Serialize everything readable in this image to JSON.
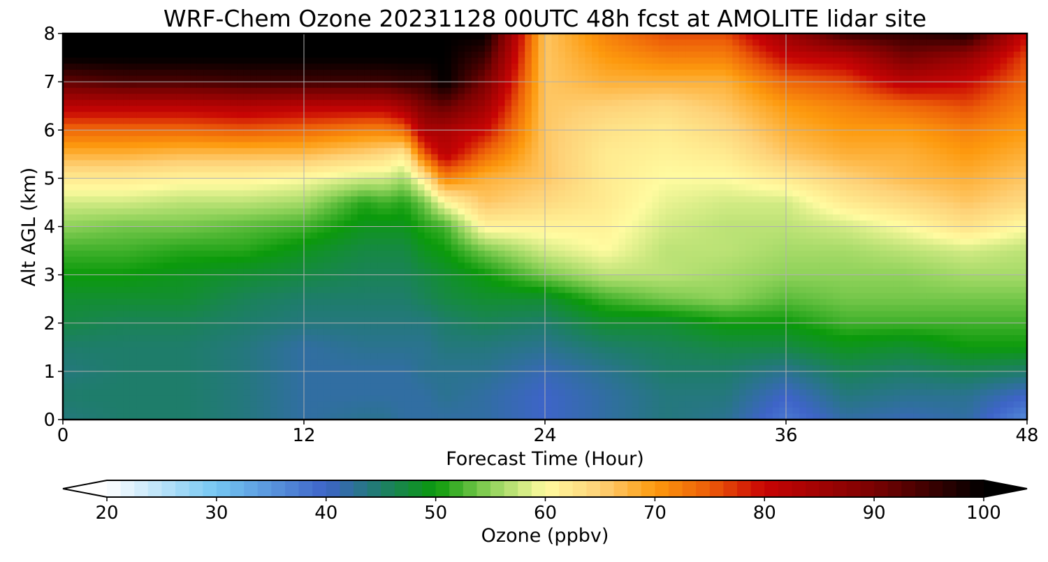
{
  "chart_data": {
    "type": "heatmap",
    "title": "WRF-Chem Ozone  20231128 00UTC 48h fcst at AMOLITE lidar site",
    "xlabel": "Forecast Time (Hour)",
    "ylabel": "Alt AGL (km)",
    "xlim": [
      0,
      48
    ],
    "ylim": [
      0,
      8
    ],
    "x_ticks": [
      "0",
      "12",
      "24",
      "36",
      "48"
    ],
    "y_ticks": [
      "0",
      "1",
      "2",
      "3",
      "4",
      "5",
      "6",
      "7",
      "8"
    ],
    "grid": true,
    "x_hours": [
      0,
      3,
      6,
      9,
      12,
      15,
      16,
      17,
      18,
      19,
      21,
      24,
      27,
      30,
      33,
      36,
      39,
      42,
      45,
      48
    ],
    "alt_km": [
      0,
      0.5,
      1,
      1.5,
      2,
      2.5,
      3,
      3.5,
      4,
      4.5,
      5,
      5.5,
      6,
      6.5,
      7,
      7.5,
      8
    ],
    "ozone_ppbv": [
      [
        44,
        45,
        44,
        45,
        47,
        48,
        50,
        52,
        55,
        58,
        62,
        68,
        74,
        82,
        92,
        100,
        100
      ],
      [
        45,
        45,
        45,
        45,
        46,
        48,
        50,
        52,
        54,
        58,
        62,
        68,
        74,
        82,
        94,
        100,
        100
      ],
      [
        45,
        45,
        45,
        45,
        46,
        48,
        49,
        51,
        54,
        57,
        61,
        67,
        74,
        82,
        94,
        100,
        100
      ],
      [
        44,
        44,
        44,
        44,
        45,
        46,
        48,
        51,
        53,
        57,
        61,
        67,
        75,
        83,
        95,
        100,
        100
      ],
      [
        42,
        42,
        42,
        42,
        44,
        45,
        47,
        49,
        52,
        56,
        60,
        67,
        74,
        82,
        95,
        100,
        100
      ],
      [
        43,
        42,
        42,
        43,
        44,
        45,
        46,
        47,
        49,
        51,
        58,
        65,
        72,
        82,
        95,
        100,
        100
      ],
      [
        43,
        42,
        42,
        43,
        44,
        45,
        46,
        47,
        49,
        52,
        58,
        64,
        72,
        82,
        95,
        100,
        100
      ],
      [
        42,
        42,
        42,
        43,
        44,
        45,
        46,
        47,
        49,
        51,
        56,
        62,
        74,
        85,
        96,
        100,
        100
      ],
      [
        42,
        42,
        43,
        43,
        44,
        46,
        47,
        49,
        51,
        54,
        62,
        75,
        84,
        90,
        96,
        100,
        100
      ],
      [
        42,
        43,
        43,
        44,
        45,
        47,
        48,
        50,
        52,
        60,
        72,
        82,
        84,
        92,
        100,
        100,
        100
      ],
      [
        42,
        42,
        43,
        44,
        46,
        48,
        50,
        54,
        61,
        66,
        68,
        74,
        80,
        85,
        90,
        95,
        100
      ],
      [
        40,
        40,
        41,
        43,
        45,
        48,
        54,
        58,
        61,
        64,
        66,
        66,
        66,
        66,
        66,
        66,
        66
      ],
      [
        42,
        42,
        43,
        45,
        48,
        52,
        57,
        60,
        61,
        62,
        62,
        62,
        63,
        65,
        68,
        70,
        72
      ],
      [
        44,
        44,
        45,
        46,
        48,
        54,
        57,
        57,
        58,
        59,
        60,
        61,
        62,
        64,
        68,
        72,
        76
      ],
      [
        43,
        44,
        45,
        47,
        50,
        55,
        56,
        57,
        57,
        58,
        60,
        62,
        64,
        66,
        68,
        72,
        76
      ],
      [
        38,
        40,
        43,
        47,
        50,
        53,
        55,
        56,
        57,
        58,
        62,
        66,
        68,
        70,
        74,
        80,
        86
      ],
      [
        42,
        44,
        46,
        49,
        52,
        54,
        55,
        56,
        58,
        62,
        65,
        68,
        70,
        72,
        76,
        82,
        95
      ],
      [
        41,
        43,
        45,
        48,
        52,
        54,
        55,
        57,
        60,
        64,
        67,
        68,
        70,
        74,
        82,
        90,
        96
      ],
      [
        42,
        43,
        46,
        50,
        52,
        54,
        56,
        58,
        63,
        66,
        68,
        70,
        72,
        76,
        80,
        86,
        98
      ],
      [
        36,
        40,
        45,
        50,
        52,
        54,
        56,
        57,
        60,
        64,
        66,
        68,
        70,
        72,
        74,
        76,
        80
      ]
    ],
    "colorbar": {
      "label": "Ozone  (ppbv)",
      "vmin": 20,
      "vmax": 100,
      "ticks": [
        "20",
        "30",
        "40",
        "50",
        "60",
        "70",
        "80",
        "90",
        "100"
      ],
      "extend": "both",
      "stops": [
        {
          "v": 20,
          "c": "#ffffff"
        },
        {
          "v": 30,
          "c": "#74c6f2"
        },
        {
          "v": 40,
          "c": "#3e64c8"
        },
        {
          "v": 45,
          "c": "#1e7d6a"
        },
        {
          "v": 50,
          "c": "#0b9a0b"
        },
        {
          "v": 55,
          "c": "#8fd25a"
        },
        {
          "v": 60,
          "c": "#fffba0"
        },
        {
          "v": 65,
          "c": "#fed177"
        },
        {
          "v": 70,
          "c": "#fd9a0e"
        },
        {
          "v": 75,
          "c": "#ec5c08"
        },
        {
          "v": 80,
          "c": "#c80404"
        },
        {
          "v": 90,
          "c": "#7a0202"
        },
        {
          "v": 100,
          "c": "#000000"
        }
      ]
    }
  }
}
